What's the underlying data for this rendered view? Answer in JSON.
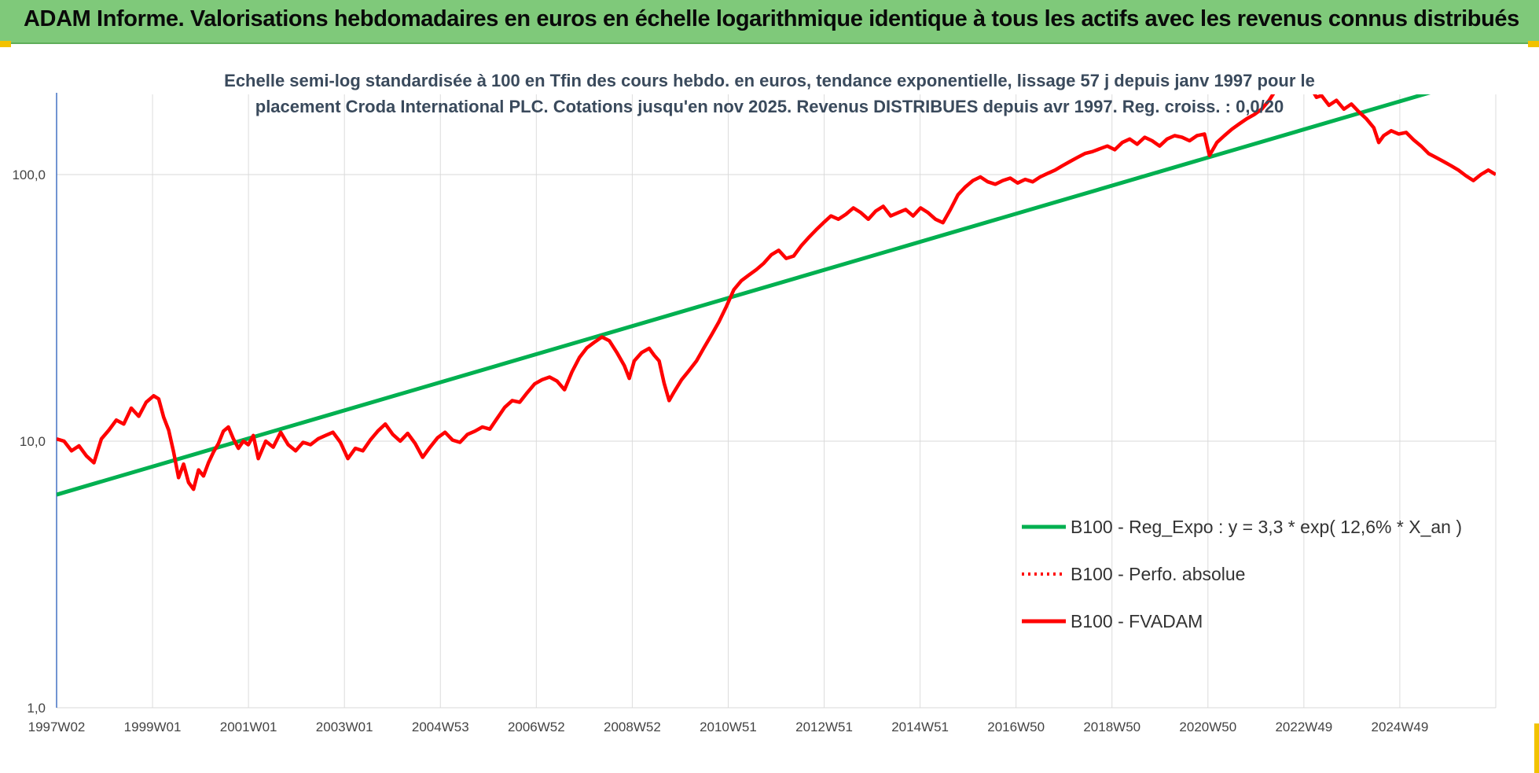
{
  "header": {
    "title": "ADAM Informe. Valorisations hebdomadaires en euros en échelle logarithmique identique à tous les actifs avec les revenus connus distribués"
  },
  "colors": {
    "banner": "#7fc97a",
    "accent_corner": "#f2c200",
    "regression": "#00b050",
    "fvadam": "#ff0000",
    "perfo": "#ff0000"
  },
  "chart_data": {
    "type": "line",
    "subtitle": [
      "Echelle semi-log standardisée à 100 en Tfin des cours hebdo. en euros, tendance exponentielle, lissage 57 j depuis janv 1997 pour le",
      "placement Croda International PLC. Cotations jusqu'en nov 2025. Revenus DISTRIBUES depuis avr 1997. Reg. croiss. : 0,0/20"
    ],
    "y_scale": "log",
    "ylim": [
      1,
      200
    ],
    "y_ticks": [
      {
        "value": 1,
        "label": "1,0"
      },
      {
        "value": 10,
        "label": "10,0"
      },
      {
        "value": 100,
        "label": "100,0"
      }
    ],
    "x_ticks": [
      "1997W02",
      "1999W01",
      "2001W01",
      "2003W01",
      "2004W53",
      "2006W52",
      "2008W52",
      "2010W51",
      "2012W51",
      "2014W51",
      "2016W50",
      "2018W50",
      "2020W50",
      "2022W49",
      "2024W49"
    ],
    "xlim": [
      1997.0,
      2025.9
    ],
    "grid": true,
    "legend_position": "right",
    "series": [
      {
        "name": "B100 - Reg_Expo : y = 3,3 * exp( 12,6% *  X_an )",
        "style": "solid",
        "color": "#00b050",
        "points": [
          [
            1997.0,
            6.3
          ],
          [
            2025.9,
            240
          ]
        ]
      },
      {
        "name": "B100 - Perfo. absolue",
        "style": "dotted",
        "color": "#ff0000",
        "points": []
      },
      {
        "name": "B100 - FVADAM",
        "style": "solid",
        "color": "#ff0000",
        "points": [
          [
            1997.0,
            10.2
          ],
          [
            1997.15,
            10.0
          ],
          [
            1997.3,
            9.2
          ],
          [
            1997.45,
            9.6
          ],
          [
            1997.6,
            8.8
          ],
          [
            1997.75,
            8.3
          ],
          [
            1997.9,
            10.2
          ],
          [
            1998.05,
            11.0
          ],
          [
            1998.2,
            12.0
          ],
          [
            1998.35,
            11.6
          ],
          [
            1998.5,
            13.3
          ],
          [
            1998.65,
            12.4
          ],
          [
            1998.8,
            14.0
          ],
          [
            1998.95,
            14.8
          ],
          [
            1999.05,
            14.4
          ],
          [
            1999.15,
            12.3
          ],
          [
            1999.25,
            11.0
          ],
          [
            1999.35,
            9.1
          ],
          [
            1999.45,
            7.3
          ],
          [
            1999.55,
            8.2
          ],
          [
            1999.65,
            7.0
          ],
          [
            1999.75,
            6.6
          ],
          [
            1999.85,
            7.8
          ],
          [
            1999.95,
            7.4
          ],
          [
            2000.05,
            8.3
          ],
          [
            2000.15,
            9.1
          ],
          [
            2000.25,
            9.8
          ],
          [
            2000.35,
            10.9
          ],
          [
            2000.45,
            11.3
          ],
          [
            2000.55,
            10.2
          ],
          [
            2000.65,
            9.4
          ],
          [
            2000.75,
            10.0
          ],
          [
            2000.85,
            9.7
          ],
          [
            2000.95,
            10.5
          ],
          [
            2001.05,
            8.6
          ],
          [
            2001.2,
            10.0
          ],
          [
            2001.35,
            9.5
          ],
          [
            2001.5,
            10.8
          ],
          [
            2001.65,
            9.7
          ],
          [
            2001.8,
            9.2
          ],
          [
            2001.95,
            9.9
          ],
          [
            2002.1,
            9.7
          ],
          [
            2002.25,
            10.2
          ],
          [
            2002.4,
            10.5
          ],
          [
            2002.55,
            10.8
          ],
          [
            2002.7,
            9.9
          ],
          [
            2002.85,
            8.6
          ],
          [
            2003.0,
            9.4
          ],
          [
            2003.15,
            9.2
          ],
          [
            2003.3,
            10.1
          ],
          [
            2003.45,
            10.9
          ],
          [
            2003.6,
            11.6
          ],
          [
            2003.75,
            10.6
          ],
          [
            2003.9,
            10.0
          ],
          [
            2004.05,
            10.7
          ],
          [
            2004.2,
            9.8
          ],
          [
            2004.35,
            8.7
          ],
          [
            2004.5,
            9.5
          ],
          [
            2004.65,
            10.3
          ],
          [
            2004.8,
            10.8
          ],
          [
            2004.95,
            10.1
          ],
          [
            2005.1,
            9.9
          ],
          [
            2005.25,
            10.6
          ],
          [
            2005.4,
            10.9
          ],
          [
            2005.55,
            11.3
          ],
          [
            2005.7,
            11.1
          ],
          [
            2005.85,
            12.2
          ],
          [
            2006.0,
            13.4
          ],
          [
            2006.15,
            14.2
          ],
          [
            2006.3,
            14.0
          ],
          [
            2006.45,
            15.2
          ],
          [
            2006.6,
            16.4
          ],
          [
            2006.75,
            17.0
          ],
          [
            2006.9,
            17.4
          ],
          [
            2007.05,
            16.8
          ],
          [
            2007.2,
            15.6
          ],
          [
            2007.35,
            18.2
          ],
          [
            2007.5,
            20.6
          ],
          [
            2007.65,
            22.4
          ],
          [
            2007.8,
            23.5
          ],
          [
            2007.95,
            24.6
          ],
          [
            2008.1,
            23.8
          ],
          [
            2008.25,
            21.5
          ],
          [
            2008.4,
            19.2
          ],
          [
            2008.5,
            17.2
          ],
          [
            2008.6,
            20.0
          ],
          [
            2008.75,
            21.5
          ],
          [
            2008.9,
            22.3
          ],
          [
            2009.0,
            21.0
          ],
          [
            2009.1,
            20.0
          ],
          [
            2009.2,
            16.5
          ],
          [
            2009.3,
            14.2
          ],
          [
            2009.4,
            15.3
          ],
          [
            2009.55,
            17.0
          ],
          [
            2009.7,
            18.4
          ],
          [
            2009.85,
            20.0
          ],
          [
            2010.0,
            22.4
          ],
          [
            2010.15,
            25.0
          ],
          [
            2010.3,
            28.0
          ],
          [
            2010.45,
            32.0
          ],
          [
            2010.6,
            37.0
          ],
          [
            2010.75,
            40.0
          ],
          [
            2010.9,
            42.0
          ],
          [
            2011.05,
            44.0
          ],
          [
            2011.2,
            46.5
          ],
          [
            2011.35,
            50.0
          ],
          [
            2011.5,
            52.0
          ],
          [
            2011.65,
            48.5
          ],
          [
            2011.8,
            49.5
          ],
          [
            2011.95,
            54.0
          ],
          [
            2012.1,
            58.0
          ],
          [
            2012.25,
            62.0
          ],
          [
            2012.4,
            66.0
          ],
          [
            2012.55,
            70.0
          ],
          [
            2012.7,
            68.0
          ],
          [
            2012.85,
            71.0
          ],
          [
            2013.0,
            75.0
          ],
          [
            2013.15,
            72.0
          ],
          [
            2013.3,
            68.0
          ],
          [
            2013.45,
            73.0
          ],
          [
            2013.6,
            76.0
          ],
          [
            2013.75,
            70.0
          ],
          [
            2013.9,
            72.0
          ],
          [
            2014.05,
            74.0
          ],
          [
            2014.2,
            70.0
          ],
          [
            2014.35,
            75.0
          ],
          [
            2014.5,
            72.0
          ],
          [
            2014.65,
            68.0
          ],
          [
            2014.8,
            66.0
          ],
          [
            2014.95,
            74.0
          ],
          [
            2015.1,
            84.0
          ],
          [
            2015.25,
            90.0
          ],
          [
            2015.4,
            95.0
          ],
          [
            2015.55,
            98.0
          ],
          [
            2015.7,
            94.0
          ],
          [
            2015.85,
            92.0
          ],
          [
            2016.0,
            95.0
          ],
          [
            2016.15,
            97.0
          ],
          [
            2016.3,
            93.0
          ],
          [
            2016.45,
            96.0
          ],
          [
            2016.6,
            94.0
          ],
          [
            2016.75,
            98.0
          ],
          [
            2016.9,
            101.0
          ],
          [
            2017.05,
            104.0
          ],
          [
            2017.2,
            108.0
          ],
          [
            2017.35,
            112.0
          ],
          [
            2017.5,
            116.0
          ],
          [
            2017.65,
            120.0
          ],
          [
            2017.8,
            122.0
          ],
          [
            2017.95,
            125.0
          ],
          [
            2018.1,
            128.0
          ],
          [
            2018.25,
            124.0
          ],
          [
            2018.4,
            132.0
          ],
          [
            2018.55,
            136.0
          ],
          [
            2018.7,
            130.0
          ],
          [
            2018.85,
            138.0
          ],
          [
            2019.0,
            134.0
          ],
          [
            2019.15,
            128.0
          ],
          [
            2019.3,
            136.0
          ],
          [
            2019.45,
            140.0
          ],
          [
            2019.6,
            138.0
          ],
          [
            2019.75,
            134.0
          ],
          [
            2019.9,
            140.0
          ],
          [
            2020.05,
            142.0
          ],
          [
            2020.15,
            118.0
          ],
          [
            2020.3,
            132.0
          ],
          [
            2020.45,
            140.0
          ],
          [
            2020.6,
            148.0
          ],
          [
            2020.75,
            155.0
          ],
          [
            2020.9,
            162.0
          ],
          [
            2021.05,
            168.0
          ],
          [
            2021.2,
            176.0
          ],
          [
            2021.35,
            190.0
          ],
          [
            2021.5,
            210.0
          ],
          [
            2021.65,
            230.0
          ],
          [
            2021.8,
            250.0
          ],
          [
            2021.95,
            260.0
          ],
          [
            2022.1,
            240.0
          ],
          [
            2022.2,
            210.0
          ],
          [
            2022.3,
            195.0
          ],
          [
            2022.4,
            198.0
          ],
          [
            2022.55,
            182.0
          ],
          [
            2022.7,
            190.0
          ],
          [
            2022.85,
            176.0
          ],
          [
            2023.0,
            184.0
          ],
          [
            2023.15,
            172.0
          ],
          [
            2023.3,
            162.0
          ],
          [
            2023.45,
            150.0
          ],
          [
            2023.55,
            132.0
          ],
          [
            2023.65,
            140.0
          ],
          [
            2023.8,
            146.0
          ],
          [
            2023.95,
            142.0
          ],
          [
            2024.1,
            144.0
          ],
          [
            2024.25,
            135.0
          ],
          [
            2024.4,
            128.0
          ],
          [
            2024.55,
            120.0
          ],
          [
            2024.7,
            116.0
          ],
          [
            2024.85,
            112.0
          ],
          [
            2025.0,
            108.0
          ],
          [
            2025.15,
            104.0
          ],
          [
            2025.3,
            99.0
          ],
          [
            2025.45,
            95.0
          ],
          [
            2025.6,
            100.0
          ],
          [
            2025.75,
            104.0
          ],
          [
            2025.9,
            100.0
          ]
        ]
      }
    ]
  }
}
